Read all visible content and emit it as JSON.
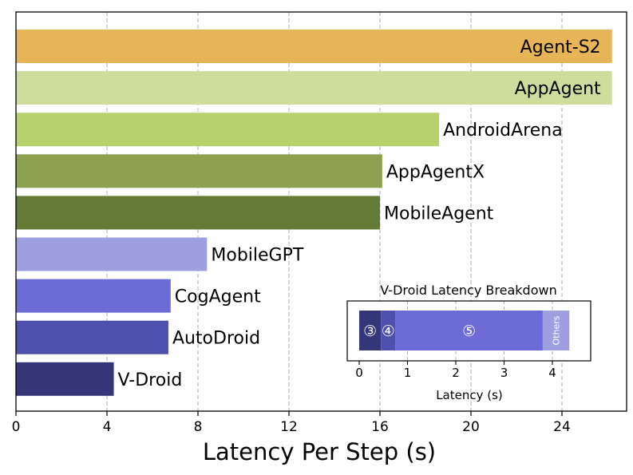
{
  "chart_data": [
    {
      "type": "bar",
      "orientation": "horizontal",
      "title": "",
      "xlabel": "Latency Per Step (s)",
      "ylabel": "",
      "xlim": [
        0,
        26.5
      ],
      "xticks": [
        0,
        4,
        8,
        12,
        16,
        20,
        24
      ],
      "grid": "vertical dashed",
      "categories": [
        "Agent-S2",
        "AppAgent",
        "AndroidArena",
        "AppAgentX",
        "MobileAgent",
        "MobileGPT",
        "CogAgent",
        "AutoDroid",
        "V-Droid"
      ],
      "values": [
        26.2,
        26.2,
        18.6,
        16.1,
        16.0,
        8.4,
        6.8,
        6.7,
        4.3
      ],
      "colors": [
        "#E8B458",
        "#CEDC9C",
        "#B6D26C",
        "#8CA250",
        "#637B37",
        "#9E9FE0",
        "#6D6CD6",
        "#4F4FAD",
        "#353679"
      ],
      "label_positions": [
        "inside",
        "inside",
        "outside",
        "outside",
        "outside",
        "outside",
        "outside",
        "outside",
        "outside"
      ]
    },
    {
      "type": "bar",
      "orientation": "horizontal",
      "stacked": true,
      "title": "V-Droid Latency Breakdown",
      "xlabel": "Latency (s)",
      "xlim": [
        0,
        4.8
      ],
      "xticks": [
        0,
        1,
        2,
        3,
        4
      ],
      "grid": "vertical dashed",
      "segments": [
        {
          "label": "③",
          "value": 0.45,
          "color": "#353679",
          "text_color": "#ffffff"
        },
        {
          "label": "④",
          "value": 0.3,
          "color": "#4F4FAD",
          "text_color": "#ffffff"
        },
        {
          "label": "⑤",
          "value": 3.05,
          "color": "#6D6CD6",
          "text_color": "#ffffff"
        },
        {
          "label": "Others",
          "value": 0.55,
          "color": "#9E9FE0",
          "text_color": "#ffffff"
        }
      ]
    }
  ]
}
